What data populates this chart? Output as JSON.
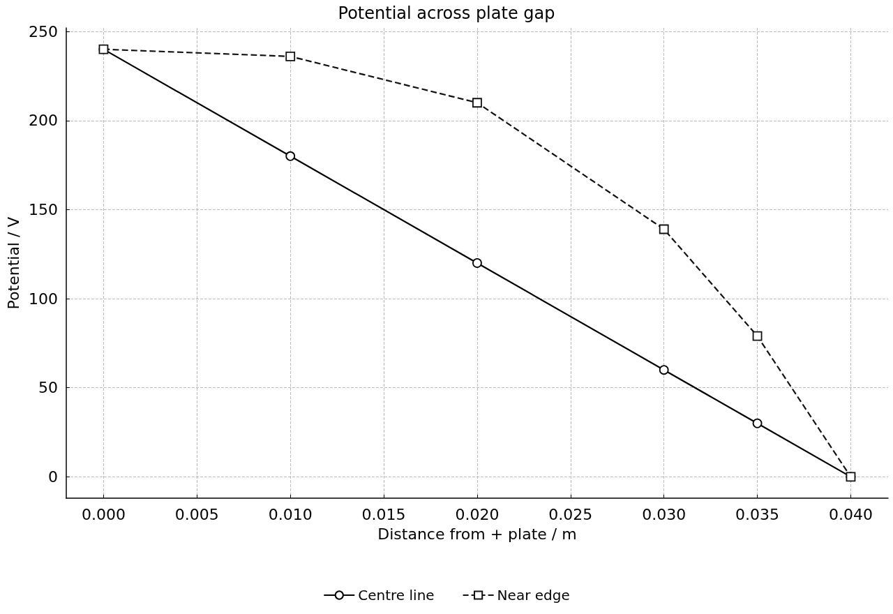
{
  "chart_data": {
    "type": "line",
    "title": "Potential across plate gap",
    "xlabel": "Distance from + plate / m",
    "ylabel": "Potential / V",
    "x": [
      0,
      0.01,
      0.02,
      0.03,
      0.035,
      0.04
    ],
    "series": [
      {
        "name": "Centre line",
        "color": "#000000",
        "values": [
          240,
          180,
          120,
          60,
          30,
          0
        ],
        "marker": "circle",
        "line_style": "solid"
      },
      {
        "name": "Near edge",
        "color": "#111111",
        "values": [
          240,
          236,
          210,
          139,
          79,
          0
        ],
        "marker": "square",
        "line_style": "dashed"
      }
    ],
    "xlim": [
      -0.002,
      0.042
    ],
    "xticks": [
      {
        "value": 0,
        "label": "0.000"
      },
      {
        "value": 0.005,
        "label": "0.005"
      },
      {
        "value": 0.01,
        "label": "0.010"
      },
      {
        "value": 0.015,
        "label": "0.015"
      },
      {
        "value": 0.02,
        "label": "0.020"
      },
      {
        "value": 0.025,
        "label": "0.025"
      },
      {
        "value": 0.03,
        "label": "0.030"
      },
      {
        "value": 0.035,
        "label": "0.035"
      },
      {
        "value": 0.04,
        "label": "0.040"
      }
    ],
    "ylim": [
      -12,
      252
    ],
    "yticks": [
      0,
      50,
      100,
      150,
      200,
      250
    ],
    "grid": true,
    "legend": "bottom"
  }
}
